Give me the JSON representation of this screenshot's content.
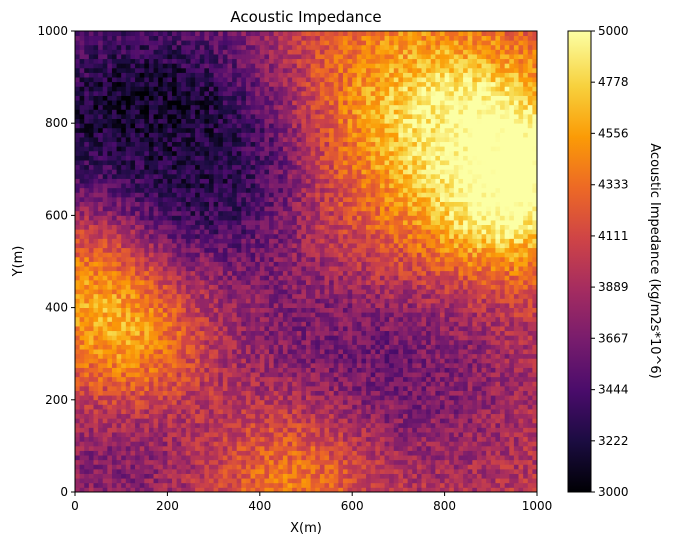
{
  "chart_data": {
    "type": "heatmap",
    "title": "Acoustic Impedance",
    "xlabel": "X(m)",
    "ylabel": "Y(m)",
    "xlim": [
      0,
      1000
    ],
    "ylim": [
      0,
      1000
    ],
    "x_ticks": [
      "0",
      "200",
      "400",
      "600",
      "800",
      "1000"
    ],
    "y_ticks": [
      "0",
      "200",
      "400",
      "600",
      "800",
      "1000"
    ],
    "grid_resolution": [
      100,
      100
    ],
    "colormap": "inferno",
    "colorbar": {
      "label": "Acoustic Impedance (kg/m2s*10^6)",
      "range": [
        3000,
        5000
      ],
      "ticks": [
        "3000",
        "3222",
        "3444",
        "3667",
        "3889",
        "4111",
        "4333",
        "4556",
        "4778",
        "5000"
      ]
    },
    "field_features": [
      {
        "x": 150,
        "y": 880,
        "value": 3400,
        "spread": 230
      },
      {
        "x": 60,
        "y": 700,
        "value": 3650,
        "spread": 150
      },
      {
        "x": 330,
        "y": 700,
        "value": 3600,
        "spread": 140
      },
      {
        "x": 930,
        "y": 650,
        "value": 4900,
        "spread": 130
      },
      {
        "x": 880,
        "y": 780,
        "value": 4700,
        "spread": 140
      },
      {
        "x": 660,
        "y": 880,
        "value": 4500,
        "spread": 160
      },
      {
        "x": 20,
        "y": 500,
        "value": 4600,
        "spread": 110
      },
      {
        "x": 120,
        "y": 330,
        "value": 4600,
        "spread": 110
      },
      {
        "x": 480,
        "y": 40,
        "value": 4500,
        "spread": 120
      },
      {
        "x": 540,
        "y": 330,
        "value": 3700,
        "spread": 200
      },
      {
        "x": 800,
        "y": 250,
        "value": 3800,
        "spread": 180
      },
      {
        "x": 80,
        "y": 60,
        "value": 3700,
        "spread": 140
      },
      {
        "x": 640,
        "y": 580,
        "value": 4300,
        "spread": 130
      }
    ],
    "base_value": 4050
  }
}
